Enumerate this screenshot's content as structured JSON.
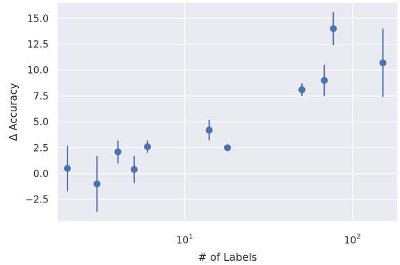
{
  "chart_data": {
    "type": "scatter",
    "error_bars": true,
    "title": "",
    "xlabel": "# of Labels",
    "ylabel": "Δ Accuracy",
    "xscale": "log",
    "xlim": [
      1.75,
      185
    ],
    "ylim": [
      -4.6,
      16.5
    ],
    "grid": true,
    "style": "seaborn darkgrid",
    "colors": {
      "background": "#eaeaf2",
      "grid": "#ffffff",
      "marker": "#4c72b0"
    },
    "x_ticks": [
      {
        "value": 10,
        "base": "10",
        "exp": "1"
      },
      {
        "value": 100,
        "base": "10",
        "exp": "2"
      }
    ],
    "y_ticks": [
      {
        "value": -2.5,
        "label": "−2.5"
      },
      {
        "value": 0,
        "label": "0.0"
      },
      {
        "value": 2.5,
        "label": "2.5"
      },
      {
        "value": 5,
        "label": "5.0"
      },
      {
        "value": 7.5,
        "label": "7.5"
      },
      {
        "value": 10,
        "label": "10.0"
      },
      {
        "value": 12.5,
        "label": "12.5"
      },
      {
        "value": 15,
        "label": "15.0"
      }
    ],
    "points": [
      {
        "x": 2,
        "y": 0.5,
        "y_low": -1.7,
        "y_high": 2.7
      },
      {
        "x": 3,
        "y": -1.0,
        "y_low": -3.7,
        "y_high": 1.7
      },
      {
        "x": 4,
        "y": 2.1,
        "y_low": 1.0,
        "y_high": 3.2
      },
      {
        "x": 5,
        "y": 0.4,
        "y_low": -0.9,
        "y_high": 1.7
      },
      {
        "x": 6,
        "y": 2.6,
        "y_low": 2.0,
        "y_high": 3.2
      },
      {
        "x": 14,
        "y": 4.2,
        "y_low": 3.2,
        "y_high": 5.2
      },
      {
        "x": 18,
        "y": 2.5,
        "y_low": 2.5,
        "y_high": 2.5
      },
      {
        "x": 50,
        "y": 8.1,
        "y_low": 7.5,
        "y_high": 8.7
      },
      {
        "x": 68,
        "y": 9.0,
        "y_low": 7.5,
        "y_high": 10.5
      },
      {
        "x": 77,
        "y": 14.0,
        "y_low": 12.4,
        "y_high": 15.6
      },
      {
        "x": 152,
        "y": 10.7,
        "y_low": 7.4,
        "y_high": 14.0
      }
    ]
  }
}
